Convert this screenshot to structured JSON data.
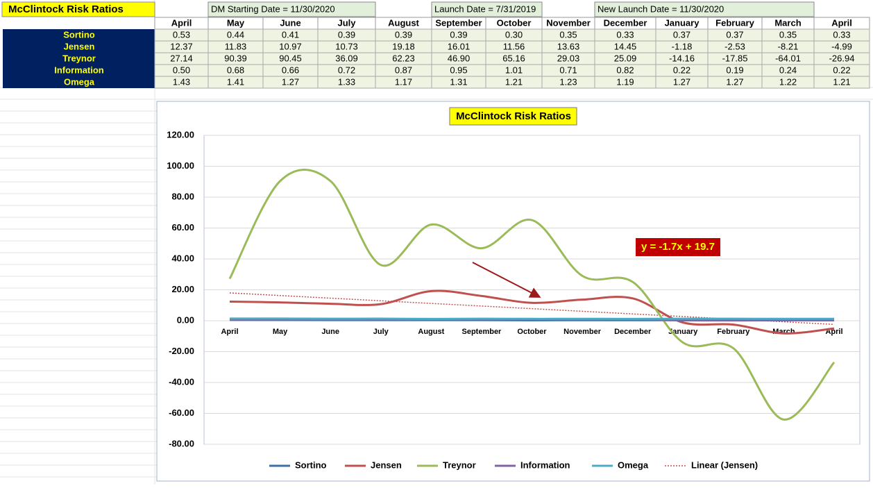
{
  "sheet": {
    "title": "McClintock Risk Ratios",
    "notes": [
      "DM Starting Date = 11/30/2020",
      "Launch Date = 7/31/2019",
      "New Launch Date = 11/30/2020"
    ]
  },
  "chart_data": {
    "type": "line",
    "title": "McClintock Risk Ratios",
    "smooth": true,
    "categories": [
      "April",
      "May",
      "June",
      "July",
      "August",
      "September",
      "October",
      "November",
      "December",
      "January",
      "February",
      "March",
      "April"
    ],
    "ylim": [
      -80,
      120
    ],
    "yticks": [
      {
        "value": -80,
        "label": "-80.00"
      },
      {
        "value": -60,
        "label": "-60.00"
      },
      {
        "value": -40,
        "label": "-40.00"
      },
      {
        "value": -20,
        "label": "-20.00"
      },
      {
        "value": 0,
        "label": "0.00"
      },
      {
        "value": 20,
        "label": "20.00"
      },
      {
        "value": 40,
        "label": "40.00"
      },
      {
        "value": 60,
        "label": "60.00"
      },
      {
        "value": 80,
        "label": "80.00"
      },
      {
        "value": 100,
        "label": "100.00"
      },
      {
        "value": 120,
        "label": "120.00"
      }
    ],
    "grid": true,
    "legend": "bottom",
    "series": [
      {
        "name": "Sortino",
        "color": "#3f6fa8",
        "values": [
          0.53,
          0.44,
          0.41,
          0.39,
          0.39,
          0.39,
          0.3,
          0.35,
          0.33,
          0.37,
          0.37,
          0.35,
          0.33
        ],
        "value_labels": [
          "0.53",
          "0.44",
          "0.41",
          "0.39",
          "0.39",
          "0.39",
          "0.30",
          "0.35",
          "0.33",
          "0.37",
          "0.37",
          "0.35",
          "0.33"
        ]
      },
      {
        "name": "Jensen",
        "color": "#c0504d",
        "values": [
          12.37,
          11.83,
          10.97,
          10.73,
          19.18,
          16.01,
          11.56,
          13.63,
          14.45,
          -1.18,
          -2.53,
          -8.21,
          -4.99
        ],
        "value_labels": [
          "12.37",
          "11.83",
          "10.97",
          "10.73",
          "19.18",
          "16.01",
          "11.56",
          "13.63",
          "14.45",
          "-1.18",
          "-2.53",
          "-8.21",
          "-4.99"
        ]
      },
      {
        "name": "Treynor",
        "color": "#9bbb59",
        "values": [
          27.14,
          90.39,
          90.45,
          36.09,
          62.23,
          46.9,
          65.16,
          29.03,
          25.09,
          -14.16,
          -17.85,
          -64.01,
          -26.94
        ],
        "value_labels": [
          "27.14",
          "90.39",
          "90.45",
          "36.09",
          "62.23",
          "46.90",
          "65.16",
          "29.03",
          "25.09",
          "-14.16",
          "-17.85",
          "-64.01",
          "-26.94"
        ]
      },
      {
        "name": "Information",
        "color": "#8064a2",
        "values": [
          0.5,
          0.68,
          0.66,
          0.72,
          0.87,
          0.95,
          1.01,
          0.71,
          0.82,
          0.22,
          0.19,
          0.24,
          0.22
        ],
        "value_labels": [
          "0.50",
          "0.68",
          "0.66",
          "0.72",
          "0.87",
          "0.95",
          "1.01",
          "0.71",
          "0.82",
          "0.22",
          "0.19",
          "0.24",
          "0.22"
        ]
      },
      {
        "name": "Omega",
        "color": "#4bacc6",
        "values": [
          1.43,
          1.41,
          1.27,
          1.33,
          1.17,
          1.31,
          1.21,
          1.23,
          1.19,
          1.27,
          1.27,
          1.22,
          1.21
        ],
        "value_labels": [
          "1.43",
          "1.41",
          "1.27",
          "1.33",
          "1.17",
          "1.31",
          "1.21",
          "1.23",
          "1.19",
          "1.27",
          "1.27",
          "1.22",
          "1.21"
        ]
      }
    ],
    "trendline": {
      "name": "Linear (Jensen)",
      "color": "#c0504d",
      "equation": "y = -1.7x + 19.7",
      "values": [
        18.0,
        16.3,
        14.6,
        12.9,
        11.2,
        9.5,
        7.8,
        6.1,
        4.4,
        2.7,
        1.0,
        -0.7,
        -2.4
      ]
    }
  }
}
